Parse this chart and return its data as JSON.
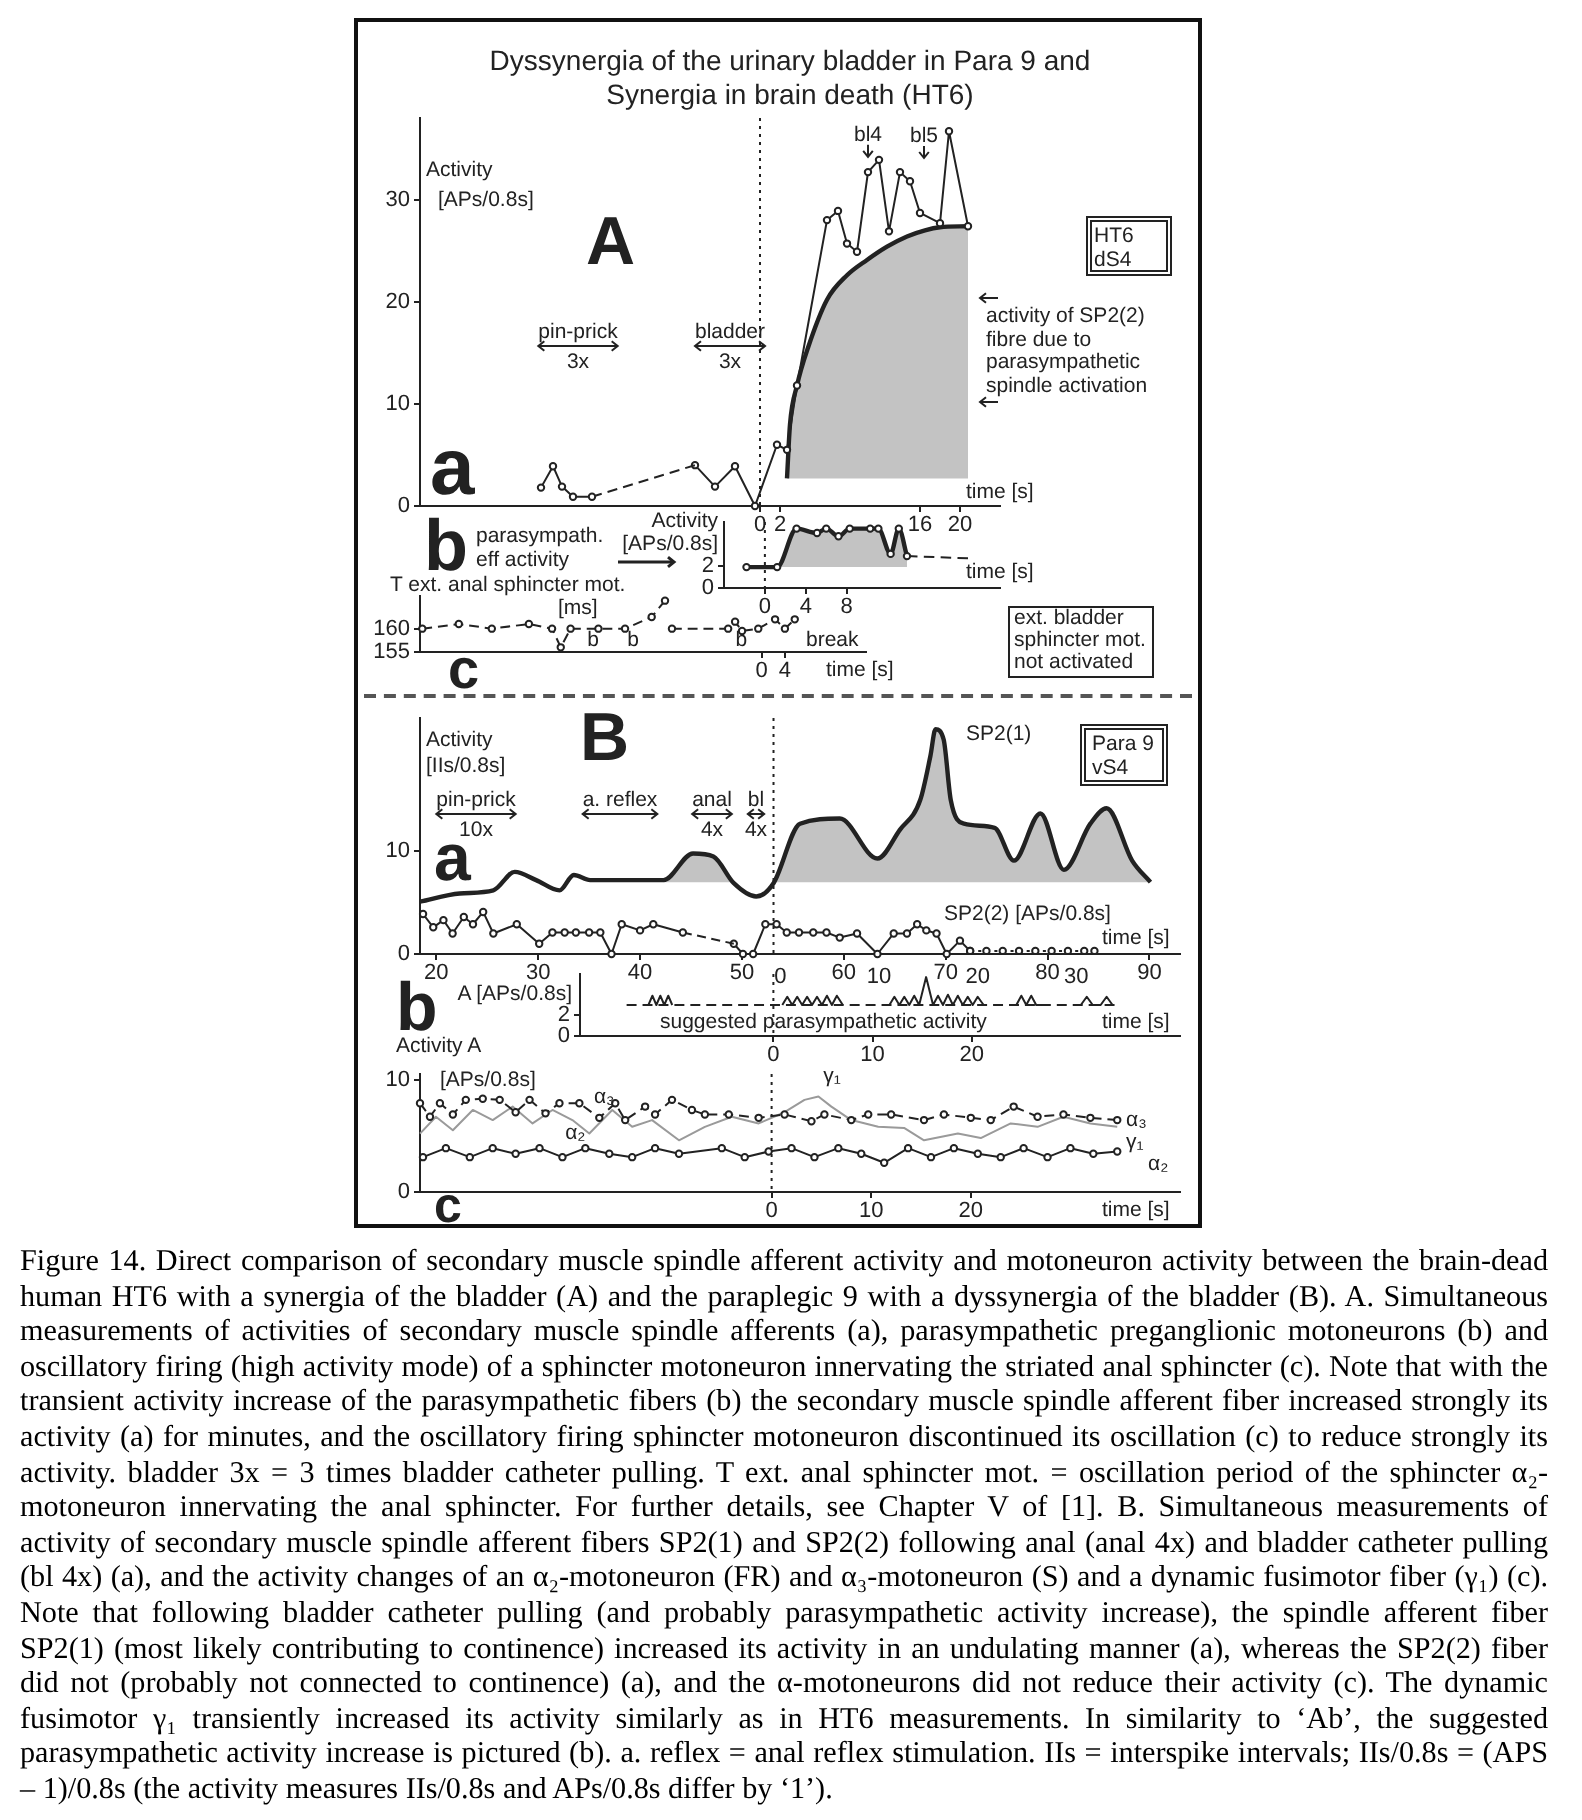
{
  "chart_data": [
    {
      "type": "line",
      "title": "Dyssynergia of the urinary bladder in Para 9 and\nSynergia in brain death (HT6)",
      "ylabel": "Activity\n[APs/0.8s]",
      "xlabel": "time [s]",
      "xlim": [
        -34,
        24
      ],
      "ylim": [
        0,
        38
      ],
      "xticks": [
        0,
        2,
        16,
        20
      ],
      "yticks": [
        0,
        10,
        20,
        30
      ],
      "ref_lines": [
        {
          "axis": "x",
          "value": 0,
          "line_style": "dotted"
        }
      ],
      "series": [
        {
          "color": "#222222",
          "marker": "circle",
          "line_style": "solid",
          "x": [
            -21.9,
            -20.7,
            -19.8,
            -18.7,
            -16.8
          ],
          "values": [
            1.8,
            3.9,
            1.9,
            0.9,
            0.9
          ]
        },
        {
          "color": "#222222",
          "line_style": "dashed",
          "x": [
            -16.8,
            -6.5
          ],
          "values": [
            0.9,
            4.0
          ]
        },
        {
          "color": "#222222",
          "marker": "circle",
          "line_style": "solid",
          "x": [
            -6.5,
            -4.5,
            -2.5,
            -0.5,
            1.7,
            2.7,
            3.7,
            6.7,
            7.8,
            8.7,
            9.7,
            10.8,
            11.9,
            12.9,
            14.0,
            15.0,
            16.0,
            18.0,
            18.9,
            20.8
          ],
          "values": [
            4.0,
            1.9,
            3.9,
            0,
            6.0,
            5.5,
            11.8,
            28.0,
            28.9,
            25.7,
            24.9,
            32.7,
            33.9,
            26.9,
            32.7,
            31.8,
            28.7,
            27.7,
            36.7,
            27.4
          ]
        },
        {
          "color": "#222222",
          "marker": "none",
          "line_style": "solid",
          "x": [
            2.7,
            3.0,
            3.7,
            4.8,
            6.7,
            8.7,
            10.7,
            12.7,
            14.7,
            16.5,
            18.0,
            20.8
          ],
          "values": [
            2.7,
            8.0,
            11.8,
            15.5,
            20.2,
            22.6,
            24.1,
            25.4,
            26.4,
            27.0,
            27.3,
            27.4
          ],
          "lower": [
            2.7,
            2.7,
            2.7,
            2.7,
            2.7,
            2.7,
            2.7,
            2.7,
            2.7,
            2.7,
            2.7,
            2.7
          ],
          "upper": [
            2.7,
            8.0,
            11.8,
            15.5,
            20.2,
            22.6,
            24.1,
            25.4,
            26.4,
            27.0,
            27.3,
            27.4
          ]
        }
      ],
      "annotations": [
        "A",
        "a",
        "pin-prick\n3x",
        "bladder\n3x",
        {
          "text": "bl4",
          "x": 10.8,
          "y": 34
        },
        "bl5",
        "HT6\ndS4",
        "activity of SP2(2)\nfibre due to\nparasympathetic\nspindle activation"
      ]
    },
    {
      "type": "line",
      "ylabel": "Activity\n[APs/0.8s]",
      "xlabel": "time [s]",
      "xlim": [
        -4,
        23
      ],
      "ylim": [
        0,
        6
      ],
      "xticks": [
        0,
        4,
        8
      ],
      "yticks": [
        0,
        2
      ],
      "ref_lines": [
        {
          "axis": "x",
          "value": 0,
          "line_style": "dotted"
        }
      ],
      "series": [
        {
          "color": "#222222",
          "marker": "circle",
          "line_style": "solid",
          "x": [
            -1.8,
            1.2,
            3.1,
            5.1,
            6.0,
            7.2,
            8.3,
            10.3,
            11.1,
            12.3,
            13.1,
            13.9
          ],
          "values": [
            1.9,
            1.9,
            5.4,
            5.0,
            5.4,
            4.7,
            5.4,
            5.4,
            5.4,
            3.1,
            5.4,
            2.9
          ],
          "lower": [
            null,
            1.9,
            1.9,
            1.9,
            1.9,
            1.9,
            1.9,
            1.9,
            1.9,
            1.9,
            1.9,
            1.9
          ],
          "upper": [
            null,
            1.9,
            5.4,
            5.0,
            5.4,
            4.7,
            5.4,
            5.4,
            5.4,
            3.1,
            5.4,
            2.9
          ]
        },
        {
          "color": "#222222",
          "marker": "none",
          "line_style": "dashed",
          "x": [
            13.9,
            19.9
          ],
          "values": [
            2.9,
            2.7
          ]
        }
      ],
      "annotations": [
        "b",
        "parasympath.\neff activity"
      ]
    },
    {
      "type": "line",
      "ylabel": "T ext. anal sphincter mot.",
      "xlabel": "time [s]",
      "xlim": [
        -59,
        18
      ],
      "ylim": [
        155,
        167
      ],
      "xticks": [
        0,
        4
      ],
      "yticks": [
        155,
        160
      ],
      "series": [
        {
          "color": "#222222",
          "marker": "circle",
          "line_style": "dashed",
          "x": [
            -58.6,
            -52.3,
            -46.6,
            -40.2,
            -36.2,
            -34.7,
            -33.0,
            -28.2,
            -23.6,
            -19.0,
            -16.7,
            -16.1,
            -15.5,
            -5.8,
            -4.6,
            -3.4,
            -0.6,
            2.3,
            4.0,
            5.7
          ],
          "values": [
            160,
            161,
            160,
            161,
            160,
            156,
            160,
            160,
            160,
            162.5,
            166,
            null,
            160,
            160,
            161.5,
            159.5,
            160,
            162,
            160,
            162
          ]
        }
      ],
      "annotations": [
        "c",
        "[ms]",
        {
          "text": "b",
          "x": -29.1,
          "y": 157.6
        },
        "b",
        {
          "text": "b",
          "x": -3.5,
          "y": 157.6
        },
        "break",
        "ext. bladder\nsphincter mot.\nnot activated"
      ]
    },
    {
      "type": "line",
      "ylabel": "Activity\n[IIs/0.8s]",
      "xlabel": "time [s]",
      "xlim": [
        18.4,
        93.0
      ],
      "ylim": [
        0,
        23
      ],
      "xticks": [
        20,
        30,
        40,
        50,
        60,
        70,
        80,
        90
      ],
      "x2lim": [
        -36.5,
        40.5
      ],
      "x2ticks": [
        0,
        10,
        20,
        30
      ],
      "yticks": [
        0,
        10
      ],
      "ref_lines": [
        {
          "axis": "x",
          "value": 53.1,
          "line_style": "dotted"
        }
      ],
      "series": [
        {
          "name": "SP2(1)",
          "color": "#222222",
          "marker": "none",
          "line_style": "solid",
          "x": [
            18.4,
            22.3,
            25.6,
            27.7,
            29.8,
            32.1,
            33.5,
            35.1,
            42.3,
            45.2,
            47.2,
            49.2,
            51.4,
            53.1,
            55.7,
            59.6,
            63.3,
            65.5,
            67.5,
            68.5,
            69.0,
            69.8,
            70.5,
            71.8,
            74.8,
            76.7,
            79.3,
            81.6,
            84.2,
            85.8,
            88.3,
            90.1
          ],
          "values": [
            5.1,
            5.9,
            6.2,
            8.0,
            7.2,
            6.2,
            7.7,
            7.2,
            7.2,
            9.8,
            9.5,
            6.9,
            5.6,
            6.9,
            12.7,
            13.2,
            9.3,
            12.1,
            15.0,
            19.3,
            21.9,
            20.9,
            15.0,
            12.7,
            12.3,
            9.1,
            13.7,
            8.2,
            12.7,
            14.2,
            9.1,
            7.0
          ],
          "lower": [
            null,
            null,
            null,
            null,
            null,
            null,
            null,
            null,
            7,
            7,
            7,
            7,
            null,
            7,
            7,
            7,
            7,
            7,
            7,
            7,
            7,
            7,
            7,
            7,
            7,
            7,
            7,
            7,
            7,
            7,
            7,
            7
          ],
          "upper": [
            null,
            null,
            null,
            null,
            null,
            null,
            null,
            null,
            7.2,
            9.8,
            9.5,
            6.9,
            null,
            6.9,
            12.7,
            13.2,
            9.3,
            12.1,
            15.0,
            19.3,
            21.9,
            20.9,
            15.0,
            12.7,
            12.3,
            9.1,
            13.7,
            8.2,
            12.7,
            14.2,
            9.1,
            7.0
          ]
        },
        {
          "color": "#222222",
          "marker": "circle",
          "line_style": "solid",
          "x": [
            18.7,
            19.7,
            20.7,
            21.6,
            22.7,
            23.6,
            24.6,
            25.6,
            27.9,
            30.1,
            31.4,
            32.6,
            33.7,
            35.0,
            36.1,
            37.2,
            38.2,
            40.0,
            41.3,
            44.2
          ],
          "values": [
            3.9,
            2.6,
            3.3,
            2.0,
            3.6,
            2.9,
            4.1,
            2.0,
            2.9,
            1.0,
            2.1,
            2.1,
            2.1,
            2.1,
            2.1,
            0,
            2.9,
            2.3,
            2.9,
            2.1
          ]
        },
        {
          "color": "#222222",
          "line_style": "dashed",
          "x": [
            44.2,
            49.2
          ],
          "values": [
            2.1,
            1.0
          ]
        },
        {
          "name": "SP2(2) [APs/0.8s]",
          "color": "#222222",
          "marker": "circle",
          "line_style": "solid",
          "x": [
            49.2,
            50.1,
            51.1,
            52.3,
            53.4,
            54.4,
            55.6,
            57.0,
            58.3,
            59.6,
            61.3,
            63.3,
            64.9,
            66.2,
            67.2,
            68.1,
            69.1,
            70.1,
            71.4,
            72.4
          ],
          "values": [
            1.0,
            0,
            0,
            2.9,
            2.9,
            2.1,
            2.1,
            2.1,
            2.1,
            1.6,
            2.0,
            0,
            2.0,
            2.0,
            2.9,
            2.3,
            2.0,
            0,
            1.3,
            0.3
          ]
        },
        {
          "color": "#222222",
          "marker": "circle",
          "line_style": "dotted",
          "x": [
            72.4,
            74.0,
            75.6,
            77.2,
            78.8,
            80.4,
            82.0,
            83.6,
            84.6
          ],
          "values": [
            0.3,
            0.3,
            0.3,
            0.3,
            0.3,
            0.3,
            0.3,
            0.3,
            0.3
          ]
        }
      ],
      "annotations": [
        "B",
        "a",
        "pin-prick\n10x",
        "a. reflex",
        "anal\n4x",
        "bl\n4x",
        "Para 9\nvS4"
      ]
    },
    {
      "type": "line",
      "ylabel": "A [APs/0.8s]",
      "xlabel": "time [s]",
      "xlim": [
        -19.5,
        41
      ],
      "ylim": [
        0,
        6
      ],
      "xticks": [
        0,
        10,
        20
      ],
      "yticks": [
        0,
        2
      ],
      "ref_lines": [
        {
          "axis": "x",
          "value": 0,
          "line_style": "dotted"
        }
      ],
      "series": [
        {
          "name": "suggested parasympathetic activity",
          "color": "#222222",
          "marker": "none",
          "line_style": "solid",
          "x": [
            -12.6,
            -12.2,
            -11.8,
            -11.4,
            -11.0,
            -10.6,
            -10.2,
            -5,
            0.9,
            1.4,
            1.9,
            2.4,
            2.9,
            3.4,
            3.9,
            4.4,
            4.9,
            5.4,
            5.9,
            6.4,
            7.0,
            9,
            11.7,
            12.2,
            12.7,
            13.2,
            13.7,
            14.2,
            14.7,
            15.4,
            16.1,
            16.6,
            17.1,
            17.6,
            18.1,
            18.6,
            19.1,
            19.6,
            20.1,
            20.6,
            21.2,
            23,
            24.5,
            25.0,
            25.5,
            26.0,
            26.5,
            27.0,
            29,
            31.0,
            31.6,
            32.2,
            33.0,
            33.6,
            34.2
          ],
          "values": [
            3.0,
            3.9,
            3.0,
            3.9,
            3.0,
            3.9,
            3.0,
            null,
            3.0,
            3.8,
            3.0,
            3.8,
            3.0,
            3.8,
            3.0,
            3.8,
            3.0,
            3.9,
            3.0,
            3.9,
            3.0,
            null,
            3.0,
            3.8,
            3.0,
            3.8,
            3.0,
            3.9,
            3.0,
            5.7,
            3.0,
            3.9,
            3.0,
            4.0,
            3.0,
            3.9,
            3.0,
            3.8,
            3.0,
            3.8,
            3.0,
            null,
            3.0,
            3.9,
            3.0,
            3.9,
            3.0,
            3.0,
            null,
            3.0,
            3.8,
            3.0,
            3.0,
            3.8,
            3.0
          ]
        },
        {
          "color": "#222222",
          "marker": "none",
          "line_style": "dashed",
          "x": [
            -14.8,
            34.4
          ],
          "values": [
            3.0,
            3.0
          ]
        }
      ],
      "annotations": [
        "b"
      ]
    },
    {
      "type": "line",
      "ylabel": "Activity A\n[APs/0.8s]",
      "xlabel": "time [s]",
      "xlim": [
        -35.3,
        41
      ],
      "ylim": [
        0,
        10.5
      ],
      "xticks": [
        0,
        10,
        20
      ],
      "yticks": [
        0,
        10
      ],
      "ref_lines": [
        {
          "axis": "x",
          "value": 0,
          "line_style": "dotted"
        }
      ],
      "series": [
        {
          "name": "α₃",
          "color": "#222222",
          "marker": "circle",
          "line_style": "dashed",
          "x": [
            -35.3,
            -34.3,
            -33.3,
            -32.0,
            -30.7,
            -29.0,
            -27.3,
            -25.7,
            -24.3,
            -22.7,
            -21.3,
            -19.3,
            -17.3,
            -15.7,
            -14.7,
            -12.7,
            -11.7,
            -10.0,
            -8.0,
            -6.7,
            -4.3,
            -1.3,
            1.3,
            4.0,
            5.3,
            8.0,
            9.7,
            12.0,
            15.3,
            17.3,
            20.0,
            22.0,
            24.3,
            26.7,
            29.3,
            32.0,
            34.7
          ],
          "values": [
            7.9,
            6.7,
            7.9,
            6.9,
            8.2,
            8.3,
            8.2,
            7.1,
            8.2,
            7.0,
            7.9,
            7.9,
            6.6,
            7.9,
            6.4,
            7.6,
            6.9,
            8.2,
            7.3,
            6.9,
            6.9,
            6.6,
            6.9,
            6.3,
            6.9,
            6.4,
            6.9,
            6.9,
            6.4,
            6.9,
            6.6,
            6.4,
            7.6,
            6.7,
            6.9,
            6.6,
            6.4
          ]
        },
        {
          "name": "γ₁",
          "color": "#9a9a9a",
          "marker": "none",
          "line_style": "solid",
          "x": [
            -35.3,
            -33.7,
            -32.0,
            -30.0,
            -28.0,
            -26.0,
            -24.0,
            -22.0,
            -20.0,
            -18.3,
            -16.0,
            -14.0,
            -12.0,
            -9.3,
            -6.7,
            -4.0,
            -1.3,
            1.3,
            3.3,
            4.7,
            6.0,
            8.0,
            10.7,
            13.3,
            15.3,
            18.7,
            21.0,
            24.0,
            26.7,
            29.3,
            32.0,
            34.7
          ],
          "values": [
            5.2,
            6.7,
            5.5,
            7.3,
            6.4,
            7.6,
            6.1,
            7.3,
            6.4,
            5.2,
            7.3,
            5.8,
            6.4,
            4.6,
            5.8,
            6.7,
            6.1,
            7.1,
            8.2,
            8.5,
            7.6,
            6.4,
            5.8,
            5.7,
            4.6,
            5.2,
            4.8,
            6.1,
            5.8,
            6.7,
            6.1,
            5.8
          ]
        },
        {
          "name": "α₂",
          "color": "#222222",
          "marker": "circle",
          "line_style": "solid",
          "x": [
            -35.0,
            -32.7,
            -30.3,
            -28.0,
            -25.7,
            -23.3,
            -21.0,
            -18.7,
            -16.3,
            -14.0,
            -11.7,
            -9.3,
            -5.0,
            -2.7,
            -0.3,
            2.0,
            4.3,
            6.7,
            9.0,
            11.3,
            13.7,
            16.0,
            18.3,
            20.7,
            23.0,
            25.3,
            27.7,
            30.0,
            32.3,
            34.7
          ],
          "values": [
            3.1,
            3.9,
            3.1,
            3.9,
            3.4,
            3.9,
            3.1,
            3.9,
            3.4,
            3.1,
            3.9,
            3.4,
            3.9,
            3.1,
            3.6,
            3.9,
            3.1,
            3.9,
            3.4,
            2.6,
            3.9,
            3.1,
            3.9,
            3.4,
            3.1,
            3.9,
            3.1,
            3.9,
            3.4,
            3.6
          ]
        }
      ],
      "annotations": [
        "c",
        {
          "text": "α₃",
          "x": -16.8,
          "y": 8.4
        },
        {
          "text": "α₂",
          "x": -19.7,
          "y": 5.2
        },
        "γ₁",
        "Figure 14. Direct comparison of secondary muscle spindle afferent activity and motoneuron activity between the brain-dead human HT6 with a synergia of the bladder (A) and the paraplegic 9 with a dyssynergia of the bladder (B). A. Simultaneous measurements of activities of secondary muscle spindle afferents (a), parasympathetic preganglionic motoneurons (b) and oscillatory firing (high activity mode) of a sphincter motoneuron innervating the striated anal sphincter (c). Note that with the transient activity increase of the parasympathetic fibers (b) the secondary muscle spindle afferent fiber increased strongly its activity (a) for minutes, and the oscillatory firing sphincter motoneuron discontinued its oscillation (c) to reduce strongly its activity. bladder 3x = 3 times bladder catheter pulling. T ext. anal sphincter mot. = oscillation period of the sphincter α₂-motoneuron innervating the anal sphincter. For further details, see Chapter V of [1]. B. Simultaneous measurements of activity of secondary muscle spindle afferent fibers SP2(1) and SP2(2) following anal (anal 4x) and bladder catheter pulling (bl 4x) (a), and the activity changes of an α₂-motoneuron (FR) and α₃-motoneuron (S) and a dynamic fusimotor fiber (γ₁) (c). Note that following bladder catheter pulling (and probably parasympathetic activity increase), the spindle afferent fiber SP2(1) (most likely contributing to continence) increased its activity in an undulating manner (a), whereas the SP2(2) fiber did not (probably not connected to continence) (a), and the α-motoneurons did not reduce their activity (c). The dynamic fusimotor γ₁ transiently increased its activity similarly as in HT6 measurements. In similarity to ‘Ab’, the suggested parasympathetic activity increase is pictured (b). a. reflex = anal reflex stimulation. IIs = interspike intervals; IIs/0.8s = (APS – 1)/0.8s (the activity measures IIs/0.8s and APs/0.8s differ by ‘1’)."
      ]
    }
  ]
}
